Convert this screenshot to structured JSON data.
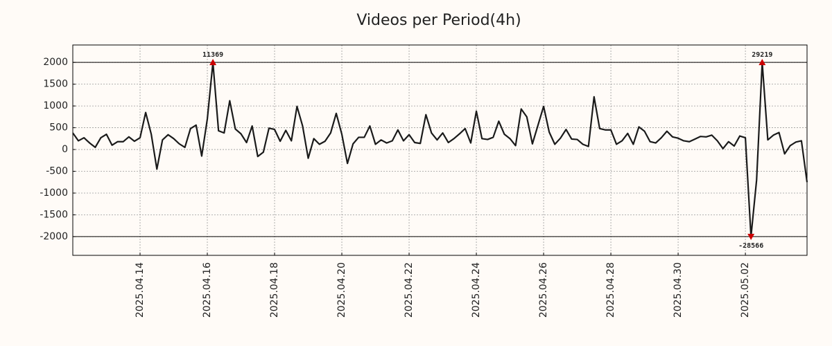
{
  "chart_data": {
    "type": "line",
    "title": "Videos per Period(4h)",
    "x": [
      0,
      4,
      8,
      12,
      16,
      20,
      24,
      28,
      32,
      36,
      40,
      44,
      48,
      52,
      56,
      60,
      64,
      68,
      72,
      76,
      80,
      84,
      88,
      92,
      96,
      100,
      104,
      108,
      112,
      116,
      120,
      124,
      128,
      132,
      136,
      140,
      144,
      148,
      152,
      156,
      160,
      164,
      168,
      172,
      176,
      180,
      184,
      188,
      192,
      196,
      200,
      204,
      208,
      212,
      216,
      220,
      224,
      228,
      232,
      236,
      240,
      244,
      248,
      252,
      256,
      260,
      264,
      268,
      272,
      276,
      280,
      284,
      288,
      292,
      296,
      300,
      304,
      308,
      312,
      316,
      320,
      324,
      328,
      332,
      336,
      340,
      344,
      348,
      352,
      356,
      360,
      364,
      368,
      372,
      376,
      380,
      384,
      388,
      392,
      396,
      400,
      404,
      408,
      412,
      416,
      420,
      424,
      428,
      432,
      436,
      440,
      444,
      448,
      452,
      456,
      460,
      464,
      468,
      472,
      476,
      480,
      484,
      488,
      492,
      496,
      500,
      504,
      508,
      512,
      516,
      520,
      524
    ],
    "series": [
      {
        "name": "Videos",
        "color": "#1a1a1a",
        "values": [
          380,
          200,
          270,
          150,
          50,
          270,
          350,
          100,
          180,
          180,
          290,
          190,
          270,
          850,
          350,
          -450,
          220,
          340,
          250,
          130,
          50,
          480,
          560,
          -150,
          700,
          2000,
          430,
          380,
          1120,
          470,
          360,
          160,
          540,
          -160,
          -60,
          490,
          460,
          190,
          440,
          200,
          990,
          540,
          -200,
          250,
          120,
          190,
          380,
          830,
          350,
          -320,
          130,
          280,
          280,
          540,
          120,
          220,
          150,
          200,
          450,
          200,
          340,
          160,
          140,
          800,
          380,
          220,
          380,
          160,
          250,
          360,
          480,
          150,
          880,
          250,
          230,
          280,
          650,
          350,
          250,
          90,
          930,
          750,
          130,
          560,
          990,
          400,
          120,
          260,
          460,
          240,
          230,
          120,
          70,
          1210,
          480,
          450,
          450,
          120,
          200,
          370,
          120,
          520,
          420,
          180,
          150,
          270,
          420,
          290,
          260,
          200,
          180,
          240,
          300,
          290,
          330,
          200,
          20,
          180,
          80,
          310,
          270,
          -2000,
          -700,
          2000,
          220,
          330,
          390,
          -100,
          90,
          170,
          200,
          -750
        ]
      }
    ],
    "xlim": [
      0,
      524
    ],
    "xticks": [
      {
        "value": 48,
        "label": "2025.04.14"
      },
      {
        "value": 96,
        "label": "2025.04.16"
      },
      {
        "value": 144,
        "label": "2025.04.18"
      },
      {
        "value": 192,
        "label": "2025.04.20"
      },
      {
        "value": 240,
        "label": "2025.04.22"
      },
      {
        "value": 288,
        "label": "2025.04.24"
      },
      {
        "value": 336,
        "label": "2025.04.26"
      },
      {
        "value": 384,
        "label": "2025.04.28"
      },
      {
        "value": 432,
        "label": "2025.04.30"
      },
      {
        "value": 480,
        "label": "2025.05.02"
      }
    ],
    "ylim": [
      -2430,
      2400
    ],
    "yticks": [
      2000,
      1500,
      1000,
      500,
      0,
      -500,
      -1000,
      -1500,
      -2000
    ],
    "grid": true,
    "hlines": [
      2000,
      -2000
    ],
    "marker_color": "#cc0000",
    "annotations": [
      {
        "text": "11369",
        "x": 100,
        "y": 2000
      },
      {
        "text": "29219",
        "x": 492,
        "y": 2000
      },
      {
        "text": "-28566",
        "x": 484,
        "y": -2000
      }
    ]
  }
}
